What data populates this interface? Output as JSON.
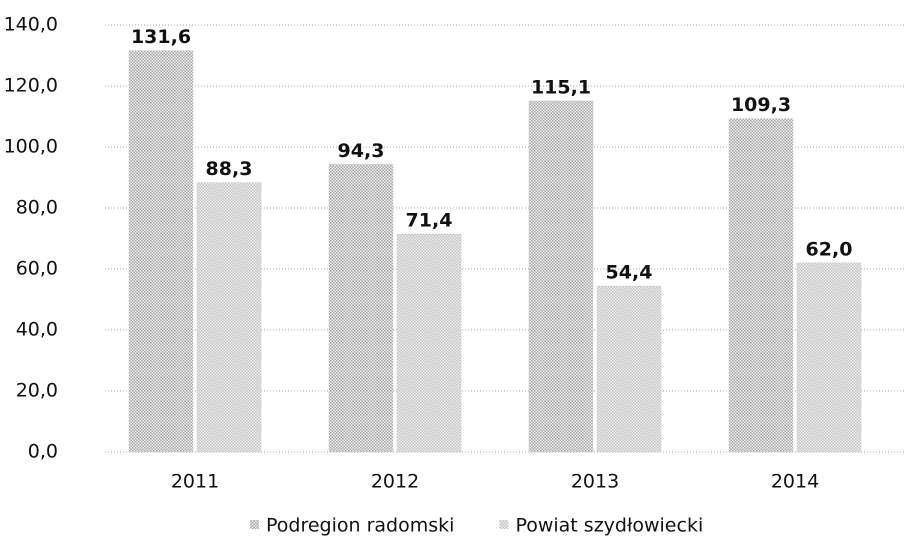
{
  "chart_data": {
    "type": "bar",
    "categories": [
      "2011",
      "2012",
      "2013",
      "2014"
    ],
    "series": [
      {
        "name": "Podregion radomski",
        "color": "#a8a8a8",
        "values": [
          131.6,
          94.3,
          115.1,
          109.3
        ],
        "value_labels": [
          "131,6",
          "94,3",
          "115,1",
          "109,3"
        ]
      },
      {
        "name": "Powiat szydłowiecki",
        "color": "#c4c4c4",
        "values": [
          88.3,
          71.4,
          54.4,
          62.0
        ],
        "value_labels": [
          "88,3",
          "71,4",
          "54,4",
          "62,0"
        ]
      }
    ],
    "ylim": [
      0,
      140
    ],
    "yticks": [
      {
        "value": 0,
        "label": "0,0"
      },
      {
        "value": 20,
        "label": "20,0"
      },
      {
        "value": 40,
        "label": "40,0"
      },
      {
        "value": 60,
        "label": "60,0"
      },
      {
        "value": 80,
        "label": "80,0"
      },
      {
        "value": 100,
        "label": "100,0"
      },
      {
        "value": 120,
        "label": "120,0"
      },
      {
        "value": 140,
        "label": "140,0"
      }
    ],
    "grid": true,
    "legend": "bottom"
  }
}
